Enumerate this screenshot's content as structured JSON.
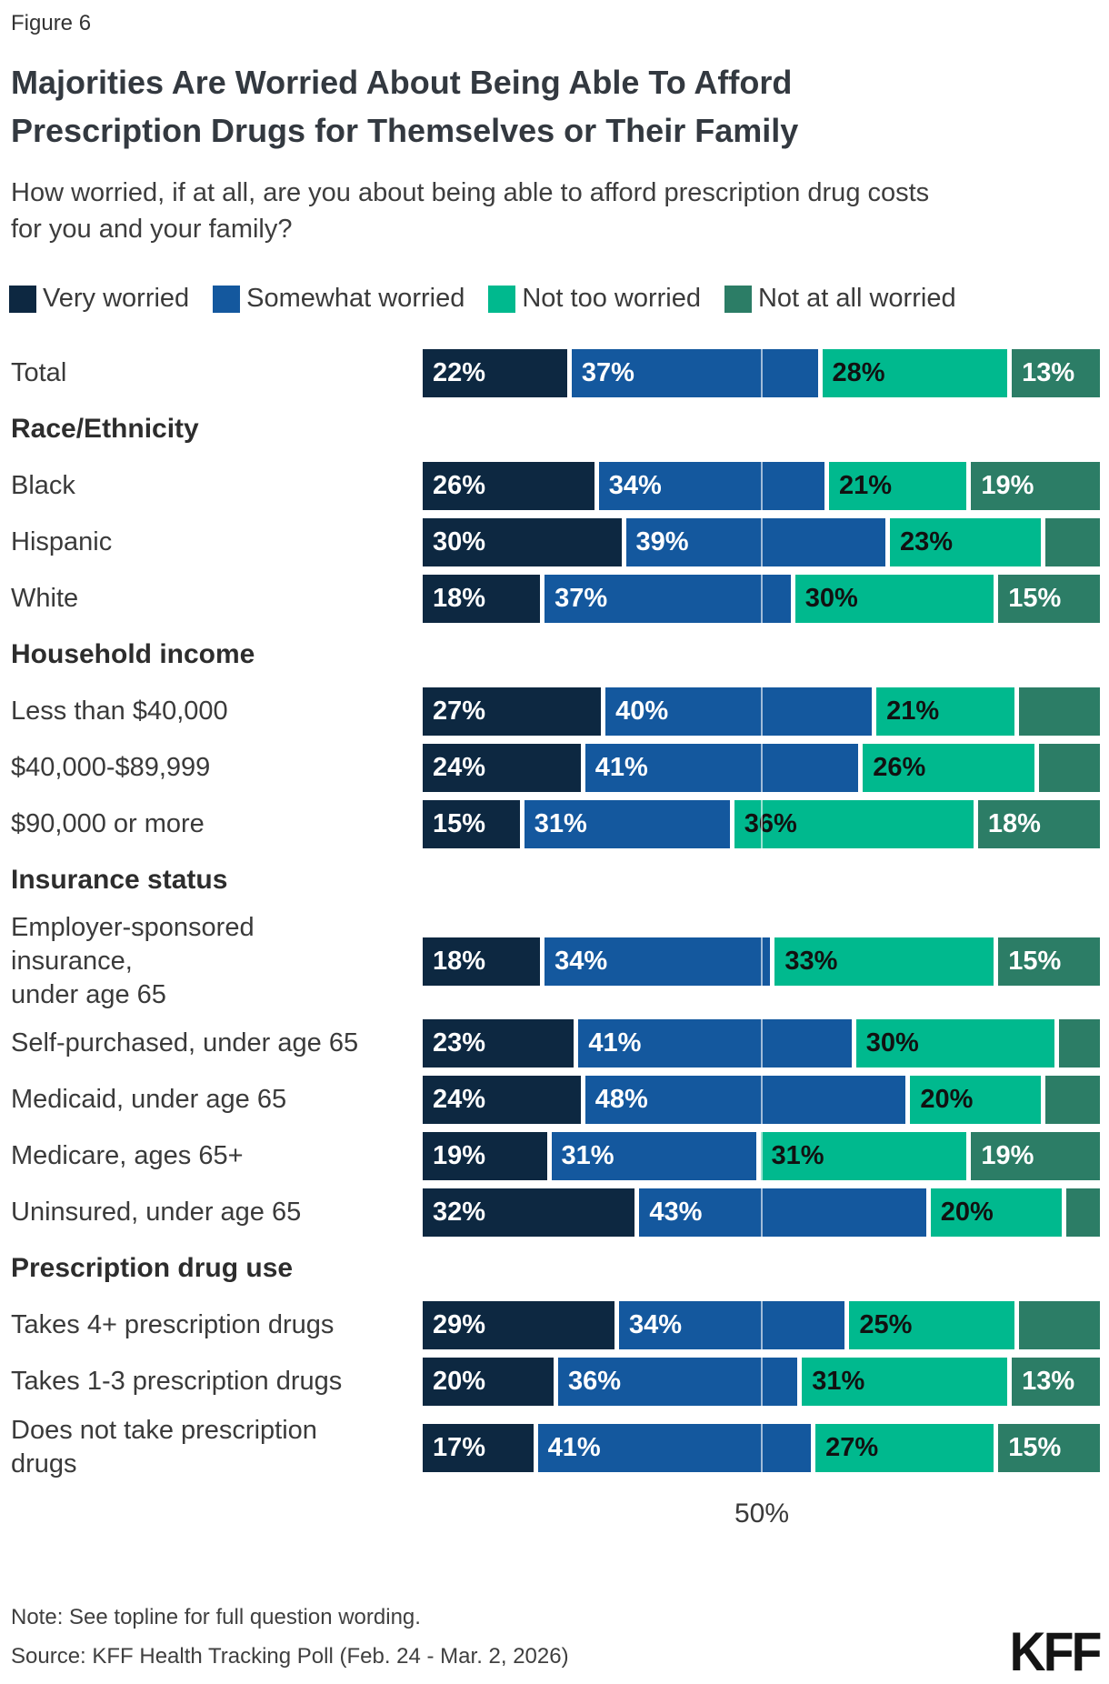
{
  "figure_label": "Figure 6",
  "title": "Majorities Are Worried About Being Able To Afford\nPrescription Drugs for Themselves or Their Family",
  "subtitle": "How worried, if at all, are you about being able to afford prescription drug costs\nfor you and your family?",
  "legend": [
    {
      "label": "Very worried",
      "color": "#0d2841",
      "text_color": "#ffffff"
    },
    {
      "label": "Somewhat worried",
      "color": "#14589e",
      "text_color": "#ffffff"
    },
    {
      "label": "Not too worried",
      "color": "#00b98e",
      "text_color": "#111111"
    },
    {
      "label": "Not at all worried",
      "color": "#2c7d66",
      "text_color": "#ffffff"
    }
  ],
  "chart_data": {
    "type": "bar",
    "stacked": true,
    "orientation": "horizontal",
    "x_max": 100,
    "grid": "single reference line at 50%",
    "legend_position": "top",
    "series_names": [
      "Very worried",
      "Somewhat worried",
      "Not too worried",
      "Not at all worried"
    ],
    "axis_tick": {
      "value": 50,
      "label": "50%"
    },
    "rows": [
      {
        "type": "bar",
        "label": "Total",
        "values": [
          22,
          37,
          28,
          13
        ],
        "labels": [
          "22%",
          "37%",
          "28%",
          "13%"
        ]
      },
      {
        "type": "section",
        "label": "Race/Ethnicity"
      },
      {
        "type": "bar",
        "label": "Black",
        "values": [
          26,
          34,
          21,
          19
        ],
        "labels": [
          "26%",
          "34%",
          "21%",
          "19%"
        ]
      },
      {
        "type": "bar",
        "label": "Hispanic",
        "values": [
          30,
          39,
          23,
          8
        ],
        "labels": [
          "30%",
          "39%",
          "23%",
          ""
        ]
      },
      {
        "type": "bar",
        "label": "White",
        "values": [
          18,
          37,
          30,
          15
        ],
        "labels": [
          "18%",
          "37%",
          "30%",
          "15%"
        ]
      },
      {
        "type": "section",
        "label": "Household income"
      },
      {
        "type": "bar",
        "label": "Less than $40,000",
        "values": [
          27,
          40,
          21,
          12
        ],
        "labels": [
          "27%",
          "40%",
          "21%",
          ""
        ]
      },
      {
        "type": "bar",
        "label": "$40,000-$89,999",
        "values": [
          24,
          41,
          26,
          9
        ],
        "labels": [
          "24%",
          "41%",
          "26%",
          ""
        ]
      },
      {
        "type": "bar",
        "label": "$90,000 or more",
        "values": [
          15,
          31,
          36,
          18
        ],
        "labels": [
          "15%",
          "31%",
          "36%",
          "18%"
        ]
      },
      {
        "type": "section",
        "label": "Insurance status"
      },
      {
        "type": "bar",
        "label": "Employer-sponsored\ninsurance,\nunder age 65",
        "values": [
          18,
          34,
          33,
          15
        ],
        "labels": [
          "18%",
          "34%",
          "33%",
          "15%"
        ]
      },
      {
        "type": "bar",
        "label": "Self-purchased, under age 65",
        "values": [
          23,
          41,
          30,
          6
        ],
        "labels": [
          "23%",
          "41%",
          "30%",
          ""
        ]
      },
      {
        "type": "bar",
        "label": "Medicaid, under age 65",
        "values": [
          24,
          48,
          20,
          8
        ],
        "labels": [
          "24%",
          "48%",
          "20%",
          ""
        ]
      },
      {
        "type": "bar",
        "label": "Medicare, ages 65+",
        "values": [
          19,
          31,
          31,
          19
        ],
        "labels": [
          "19%",
          "31%",
          "31%",
          "19%"
        ]
      },
      {
        "type": "bar",
        "label": "Uninsured, under age 65",
        "values": [
          32,
          43,
          20,
          5
        ],
        "labels": [
          "32%",
          "43%",
          "20%",
          ""
        ]
      },
      {
        "type": "section",
        "label": "Prescription drug use"
      },
      {
        "type": "bar",
        "label": "Takes 4+ prescription drugs",
        "values": [
          29,
          34,
          25,
          12
        ],
        "labels": [
          "29%",
          "34%",
          "25%",
          ""
        ]
      },
      {
        "type": "bar",
        "label": "Takes 1-3 prescription drugs",
        "values": [
          20,
          36,
          31,
          13
        ],
        "labels": [
          "20%",
          "36%",
          "31%",
          "13%"
        ]
      },
      {
        "type": "bar",
        "label": "Does not take prescription\ndrugs",
        "values": [
          17,
          41,
          27,
          15
        ],
        "labels": [
          "17%",
          "41%",
          "27%",
          "15%"
        ]
      }
    ]
  },
  "axis": {
    "tick_label": "50%"
  },
  "note": "Note: See topline for full question wording.",
  "source": "Source: KFF Health Tracking Poll (Feb. 24 - Mar. 2, 2026)",
  "logo": "KFF"
}
